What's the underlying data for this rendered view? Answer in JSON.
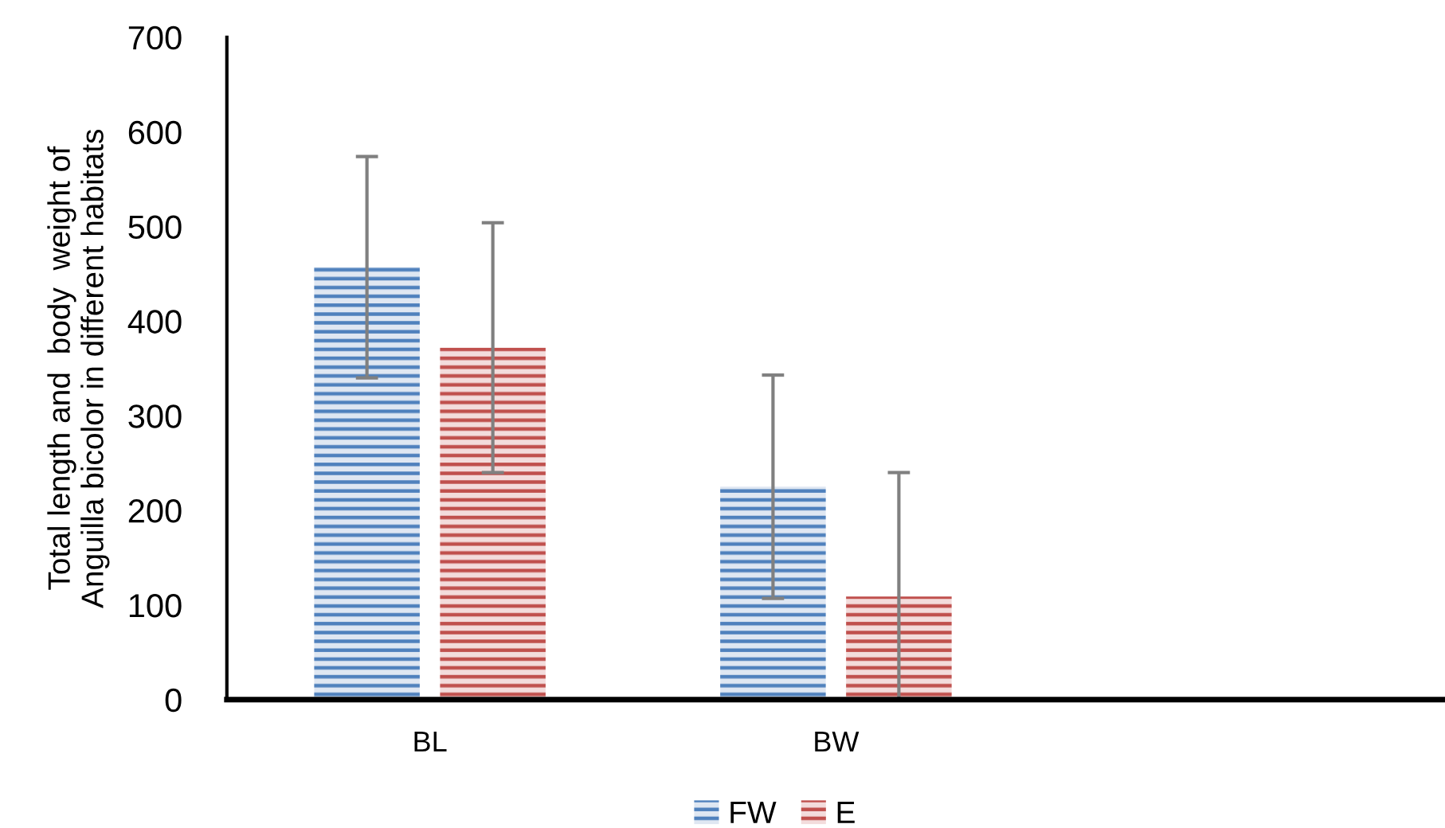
{
  "chart_data": {
    "type": "bar",
    "ylabel": "Total length and  body  weight of\nAnguilla bicolor in different habitats",
    "categories": [
      "BL",
      "BW",
      null
    ],
    "series": [
      {
        "name": "FW",
        "color": "#4f81bd",
        "values": [
          457,
          225,
          null
        ],
        "errors": [
          117,
          118,
          null
        ]
      },
      {
        "name": "E",
        "color": "#c0504d",
        "values": [
          372,
          109,
          null
        ],
        "errors": [
          132,
          [
            0,
            240
          ],
          null
        ]
      }
    ],
    "ylim": [
      0,
      700
    ],
    "yticks": [
      0,
      100,
      200,
      300,
      400,
      500,
      600,
      700
    ],
    "grid": false,
    "legend": "bottom"
  }
}
